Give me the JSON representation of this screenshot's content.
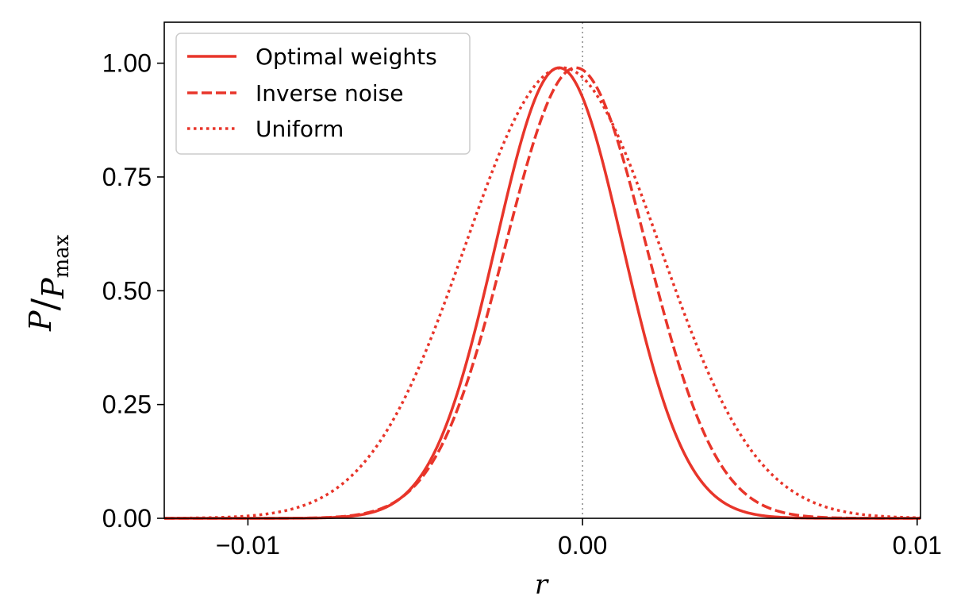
{
  "chart_data": {
    "type": "line",
    "title": "",
    "xlabel": "r",
    "ylabel": {
      "main": "P",
      "sub_base": "P",
      "sub": "max"
    },
    "xlim": [
      -0.0125,
      0.0101
    ],
    "ylim": [
      0.0,
      1.09
    ],
    "xticks": [
      {
        "value": -0.01,
        "label": "−0.01"
      },
      {
        "value": 0.0,
        "label": "0.00"
      },
      {
        "value": 0.01,
        "label": "0.01"
      }
    ],
    "yticks": [
      {
        "value": 0.0,
        "label": "0.00"
      },
      {
        "value": 0.25,
        "label": "0.25"
      },
      {
        "value": 0.5,
        "label": "0.50"
      },
      {
        "value": 0.75,
        "label": "0.75"
      },
      {
        "value": 1.0,
        "label": "1.00"
      }
    ],
    "reference_line": {
      "x": 0.0,
      "style": "dotted",
      "color": "#888888"
    },
    "legend_position": "upper-left",
    "series": [
      {
        "name": "Optimal weights",
        "style": "solid",
        "color": "#e8352a",
        "peak_x": -0.0007,
        "peak_y": 0.99,
        "sigma_left": 0.0019,
        "sigma_right": 0.0019
      },
      {
        "name": "Inverse noise",
        "style": "dashed",
        "color": "#e8352a",
        "peak_x": -0.0002,
        "peak_y": 0.99,
        "sigma_left": 0.0021,
        "sigma_right": 0.0021
      },
      {
        "name": "Uniform",
        "style": "dotted",
        "color": "#e8352a",
        "peak_x": -0.0006,
        "peak_y": 0.99,
        "sigma_left": 0.0029,
        "sigma_right": 0.0029
      }
    ]
  }
}
